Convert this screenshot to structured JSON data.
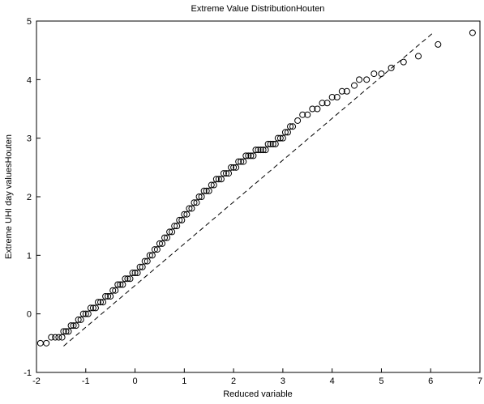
{
  "chart_data": {
    "type": "scatter",
    "title": "Extreme Value DistributionHouten",
    "x_label": "Reduced variable",
    "y_label": "Extreme UHI day valuesHouten",
    "xlim": [
      -2,
      7
    ],
    "ylim": [
      -1,
      5
    ],
    "xticks": [
      -2,
      -1,
      0,
      1,
      2,
      3,
      4,
      5,
      6,
      7
    ],
    "yticks": [
      -1,
      0,
      1,
      2,
      3,
      4,
      5
    ],
    "series": [
      {
        "style": "markers",
        "color": "#000000",
        "x": [
          -1.92,
          -1.8,
          -1.7,
          -1.62,
          -1.55,
          -1.48,
          -1.45,
          -1.4,
          -1.35,
          -1.3,
          -1.25,
          -1.2,
          -1.15,
          -1.1,
          -1.05,
          -1.0,
          -0.95,
          -0.9,
          -0.85,
          -0.8,
          -0.75,
          -0.7,
          -0.65,
          -0.6,
          -0.55,
          -0.5,
          -0.45,
          -0.4,
          -0.35,
          -0.3,
          -0.25,
          -0.2,
          -0.15,
          -0.1,
          -0.05,
          0,
          0.05,
          0.1,
          0.15,
          0.2,
          0.25,
          0.3,
          0.35,
          0.4,
          0.45,
          0.5,
          0.55,
          0.6,
          0.65,
          0.7,
          0.75,
          0.8,
          0.85,
          0.9,
          0.95,
          1.0,
          1.05,
          1.1,
          1.15,
          1.2,
          1.25,
          1.3,
          1.35,
          1.4,
          1.45,
          1.5,
          1.55,
          1.6,
          1.65,
          1.7,
          1.75,
          1.8,
          1.85,
          1.9,
          1.95,
          2.0,
          2.05,
          2.1,
          2.15,
          2.2,
          2.25,
          2.3,
          2.35,
          2.4,
          2.45,
          2.5,
          2.55,
          2.6,
          2.65,
          2.7,
          2.75,
          2.8,
          2.85,
          2.9,
          2.95,
          3.0,
          3.05,
          3.1,
          3.15,
          3.2,
          3.3,
          3.4,
          3.5,
          3.6,
          3.7,
          3.8,
          3.9,
          4.0,
          4.1,
          4.2,
          4.3,
          4.45,
          4.55,
          4.7,
          4.85,
          5.0,
          5.2,
          5.45,
          5.75,
          6.15,
          6.85
        ],
        "values": [
          -0.5,
          -0.5,
          -0.4,
          -0.4,
          -0.4,
          -0.4,
          -0.3,
          -0.3,
          -0.3,
          -0.2,
          -0.2,
          -0.2,
          -0.1,
          -0.1,
          0.0,
          0.0,
          0.0,
          0.1,
          0.1,
          0.1,
          0.2,
          0.2,
          0.2,
          0.3,
          0.3,
          0.3,
          0.4,
          0.4,
          0.5,
          0.5,
          0.5,
          0.6,
          0.6,
          0.6,
          0.7,
          0.7,
          0.7,
          0.8,
          0.8,
          0.9,
          0.9,
          1.0,
          1.0,
          1.1,
          1.1,
          1.2,
          1.2,
          1.3,
          1.3,
          1.4,
          1.4,
          1.5,
          1.5,
          1.6,
          1.6,
          1.7,
          1.7,
          1.8,
          1.8,
          1.9,
          1.9,
          2.0,
          2.0,
          2.1,
          2.1,
          2.1,
          2.2,
          2.2,
          2.3,
          2.3,
          2.3,
          2.4,
          2.4,
          2.4,
          2.5,
          2.5,
          2.5,
          2.6,
          2.6,
          2.6,
          2.7,
          2.7,
          2.7,
          2.7,
          2.8,
          2.8,
          2.8,
          2.8,
          2.8,
          2.9,
          2.9,
          2.9,
          2.9,
          3.0,
          3.0,
          3.0,
          3.1,
          3.1,
          3.2,
          3.2,
          3.3,
          3.4,
          3.4,
          3.5,
          3.5,
          3.6,
          3.6,
          3.7,
          3.7,
          3.8,
          3.8,
          3.9,
          4.0,
          4.0,
          4.1,
          4.1,
          4.2,
          4.3,
          4.4,
          4.6,
          4.8
        ]
      },
      {
        "style": "dashed-line",
        "color": "#000000",
        "x": [
          -1.45,
          6.05
        ],
        "values": [
          -0.55,
          4.8
        ]
      }
    ]
  }
}
